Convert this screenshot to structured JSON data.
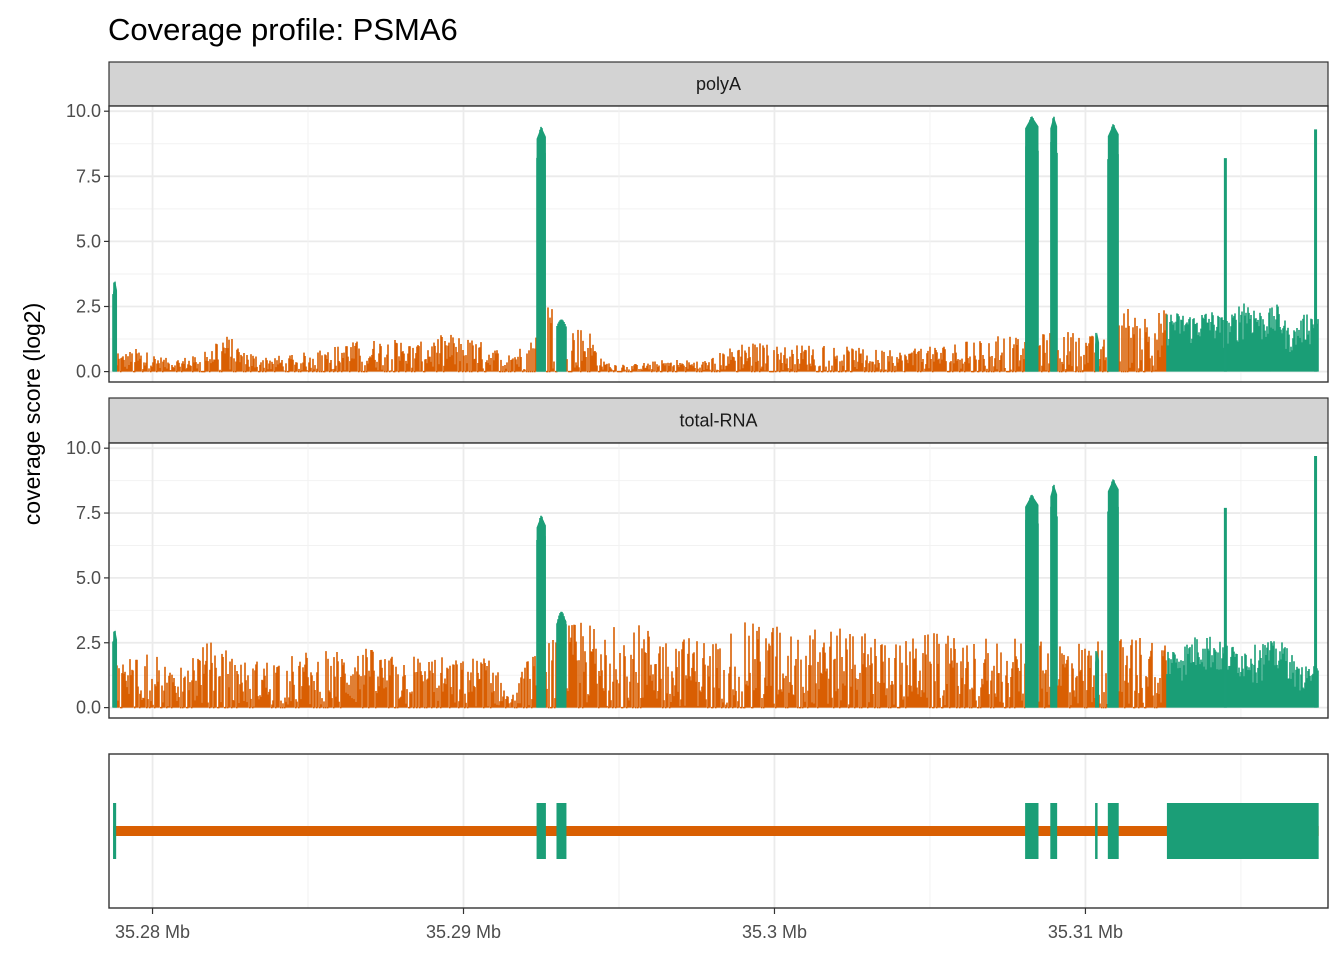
{
  "chart_data": {
    "type": "area",
    "title": "Coverage profile: PSMA6",
    "ylabel": "coverage score (log2)",
    "xlabel": "",
    "xlim": [
      35.2786,
      35.3178
    ],
    "ylim": [
      -0.4,
      10.2
    ],
    "x_ticks": [
      35.28,
      35.29,
      35.3,
      35.31
    ],
    "x_tick_labels": [
      "35.28 Mb",
      "35.29 Mb",
      "35.3 Mb",
      "35.31 Mb"
    ],
    "y_ticks": [
      0,
      2.5,
      5,
      7.5,
      10
    ],
    "y_tick_labels": [
      "0.0",
      "2.5",
      "5.0",
      "7.5",
      "10.0"
    ],
    "grid": true,
    "colors": {
      "exon": "#1b9e77",
      "intron": "#d95f02",
      "strip": "#d3d3d3",
      "border": "#333333",
      "grid": "#ebebeb"
    },
    "exons": [
      [
        35.27873,
        35.27883
      ],
      [
        35.29235,
        35.29265
      ],
      [
        35.29299,
        35.29331
      ],
      [
        35.30806,
        35.30849
      ],
      [
        35.30887,
        35.30909
      ],
      [
        35.31031,
        35.31036
      ],
      [
        35.31072,
        35.31107
      ],
      [
        35.31262,
        35.3175
      ]
    ],
    "gene_range": [
      35.27873,
      35.3175
    ],
    "panels": [
      {
        "name": "polyA",
        "exon_peaks": [
          3.5,
          9.4,
          2.0,
          9.8,
          9.8,
          1.5,
          9.5,
          9.5
        ],
        "intron_points": [
          [
            35.279,
            0.7
          ],
          [
            35.2795,
            0.9
          ],
          [
            35.2805,
            0.5
          ],
          [
            35.2813,
            0.6
          ],
          [
            35.2822,
            1.6
          ],
          [
            35.2832,
            0.7
          ],
          [
            35.2843,
            0.6
          ],
          [
            35.2855,
            0.9
          ],
          [
            35.2866,
            1.2
          ],
          [
            35.2875,
            1.3
          ],
          [
            35.2885,
            1.1
          ],
          [
            35.2895,
            1.5
          ],
          [
            35.2905,
            1.2
          ],
          [
            35.2913,
            0.8
          ],
          [
            35.2921,
            1.0
          ],
          [
            35.2927,
            2.9
          ],
          [
            35.2935,
            1.7
          ],
          [
            35.294,
            1.8
          ],
          [
            35.2945,
            0.4
          ],
          [
            35.2955,
            0.3
          ],
          [
            35.2967,
            0.5
          ],
          [
            35.2977,
            0.4
          ],
          [
            35.299,
            1.2
          ],
          [
            35.3003,
            1.0
          ],
          [
            35.3015,
            1.1
          ],
          [
            35.3028,
            0.9
          ],
          [
            35.304,
            0.8
          ],
          [
            35.3052,
            1.0
          ],
          [
            35.3062,
            1.2
          ],
          [
            35.3072,
            1.5
          ],
          [
            35.3078,
            1.3
          ],
          [
            35.3092,
            1.6
          ],
          [
            35.3099,
            1.5
          ],
          [
            35.3106,
            1.3
          ],
          [
            35.3113,
            2.6
          ],
          [
            35.3118,
            2.2
          ],
          [
            35.3123,
            2.4
          ]
        ],
        "utr_points": [
          [
            35.3128,
            2.3
          ],
          [
            35.3135,
            2.2
          ],
          [
            35.314,
            2.4
          ],
          [
            35.3146,
            2.0
          ],
          [
            35.3151,
            2.9
          ],
          [
            35.3145,
            8.2
          ],
          [
            35.3157,
            2.3
          ],
          [
            35.3162,
            2.6
          ],
          [
            35.3166,
            1.5
          ],
          [
            35.3171,
            2.3
          ],
          [
            35.3174,
            9.3
          ]
        ]
      },
      {
        "name": "total-RNA",
        "exon_peaks": [
          3.0,
          7.4,
          3.7,
          8.2,
          8.6,
          2.2,
          8.8,
          9.7
        ],
        "intron_points": [
          [
            35.279,
            1.8
          ],
          [
            35.2797,
            2.6
          ],
          [
            35.2805,
            1.5
          ],
          [
            35.2812,
            2.3
          ],
          [
            35.282,
            2.6
          ],
          [
            35.2828,
            1.8
          ],
          [
            35.2838,
            1.9
          ],
          [
            35.285,
            2.2
          ],
          [
            35.286,
            2.2
          ],
          [
            35.2867,
            2.4
          ],
          [
            35.2877,
            2.0
          ],
          [
            35.2887,
            2.1
          ],
          [
            35.2897,
            1.9
          ],
          [
            35.2908,
            2.0
          ],
          [
            35.2916,
            0.5
          ],
          [
            35.292,
            1.8
          ],
          [
            35.2935,
            3.3
          ],
          [
            35.2945,
            3.2
          ],
          [
            35.2955,
            3.3
          ],
          [
            35.2967,
            2.8
          ],
          [
            35.2978,
            2.7
          ],
          [
            35.299,
            3.3
          ],
          [
            35.3002,
            3.2
          ],
          [
            35.3015,
            3.1
          ],
          [
            35.3028,
            3.0
          ],
          [
            35.304,
            2.6
          ],
          [
            35.305,
            2.9
          ],
          [
            35.306,
            2.7
          ],
          [
            35.3073,
            2.8
          ],
          [
            35.3083,
            2.5
          ],
          [
            35.3093,
            2.7
          ],
          [
            35.31,
            2.6
          ],
          [
            35.3113,
            2.8
          ],
          [
            35.3122,
            2.9
          ]
        ],
        "utr_points": [
          [
            35.313,
            2.3
          ],
          [
            35.3138,
            3.0
          ],
          [
            35.3144,
            2.5
          ],
          [
            35.3145,
            7.7
          ],
          [
            35.3152,
            2.3
          ],
          [
            35.3158,
            2.6
          ],
          [
            35.3165,
            2.5
          ],
          [
            35.3168,
            1.6
          ],
          [
            35.3174,
            9.7
          ]
        ]
      }
    ]
  }
}
